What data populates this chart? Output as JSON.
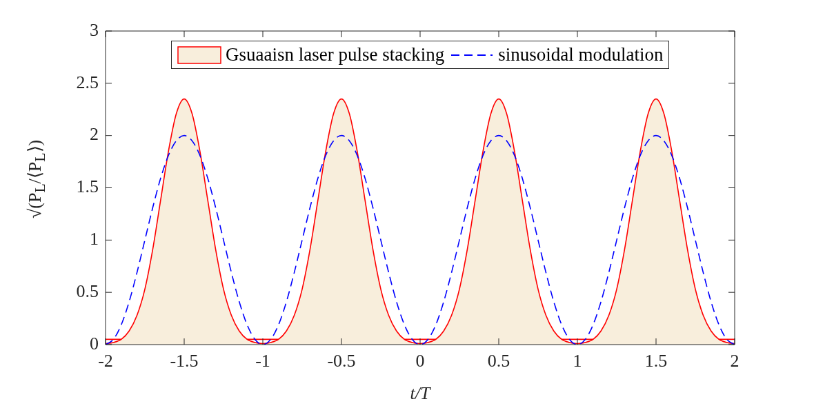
{
  "chart_data": {
    "type": "area",
    "xlabel": "t/T",
    "ylabel": "√(P$_{L}$/⟨P$_{L}$⟩)",
    "x": [
      -2,
      -1.95,
      -1.9,
      -1.85,
      -1.8,
      -1.75,
      -1.7,
      -1.65,
      -1.6,
      -1.55,
      -1.5,
      -1.45,
      -1.4,
      -1.35,
      -1.3,
      -1.25,
      -1.2,
      -1.15,
      -1.1,
      -1.05,
      -1,
      -0.95,
      -0.9,
      -0.85,
      -0.8,
      -0.75,
      -0.7,
      -0.65,
      -0.6,
      -0.55,
      -0.5,
      -0.45,
      -0.4,
      -0.35,
      -0.3,
      -0.25,
      -0.2,
      -0.15,
      -0.1,
      -0.05,
      0,
      0.05,
      0.1,
      0.15,
      0.2,
      0.25,
      0.3,
      0.35,
      0.4,
      0.45,
      0.5,
      0.55,
      0.6,
      0.65,
      0.7,
      0.75,
      0.8,
      0.85,
      0.9,
      0.95,
      1,
      1.05,
      1.1,
      1.15,
      1.2,
      1.25,
      1.3,
      1.35,
      1.4,
      1.45,
      1.5,
      1.55,
      1.6,
      1.65,
      1.7,
      1.75,
      1.8,
      1.85,
      1.9,
      1.95,
      2
    ],
    "series": [
      {
        "name": "Gsuaaisn laser pulse stacking",
        "color": "#ff0000",
        "values": [
          0.01,
          0.02,
          0.05,
          0.13,
          0.28,
          0.53,
          0.91,
          1.38,
          1.85,
          2.21,
          2.35,
          2.21,
          1.85,
          1.38,
          0.91,
          0.53,
          0.28,
          0.13,
          0.05,
          0.02,
          0.01,
          0.02,
          0.05,
          0.13,
          0.28,
          0.53,
          0.91,
          1.38,
          1.85,
          2.21,
          2.35,
          2.21,
          1.85,
          1.38,
          0.91,
          0.53,
          0.28,
          0.13,
          0.05,
          0.02,
          0.01,
          0.02,
          0.05,
          0.13,
          0.28,
          0.53,
          0.91,
          1.38,
          1.85,
          2.21,
          2.35,
          2.21,
          1.85,
          1.38,
          0.91,
          0.53,
          0.28,
          0.13,
          0.05,
          0.02,
          0.01,
          0.02,
          0.05,
          0.13,
          0.28,
          0.53,
          0.91,
          1.38,
          1.85,
          2.21,
          2.35,
          2.21,
          1.85,
          1.38,
          0.91,
          0.53,
          0.28,
          0.13,
          0.05,
          0.02,
          0.01
        ]
      },
      {
        "name": "sinusoidal modulation",
        "type": "line",
        "color": "#0000ff",
        "line_style": "dashed",
        "values": [
          0,
          0.05,
          0.19,
          0.41,
          0.69,
          1,
          1.31,
          1.59,
          1.81,
          1.95,
          2,
          1.95,
          1.81,
          1.59,
          1.31,
          1,
          0.69,
          0.41,
          0.19,
          0.05,
          0,
          0.05,
          0.19,
          0.41,
          0.69,
          1,
          1.31,
          1.59,
          1.81,
          1.95,
          2,
          1.95,
          1.81,
          1.59,
          1.31,
          1,
          0.69,
          0.41,
          0.19,
          0.05,
          0,
          0.05,
          0.19,
          0.41,
          0.69,
          1,
          1.31,
          1.59,
          1.81,
          1.95,
          2,
          1.95,
          1.81,
          1.59,
          1.31,
          1,
          0.69,
          0.41,
          0.19,
          0.05,
          0,
          0.05,
          0.19,
          0.41,
          0.69,
          1,
          1.31,
          1.59,
          1.81,
          1.95,
          2,
          1.95,
          1.81,
          1.59,
          1.31,
          1,
          0.69,
          0.41,
          0.19,
          0.05,
          0
        ]
      }
    ],
    "ref_lines": [
      {
        "axis": "y",
        "value": 0.05,
        "color": "#ff0000"
      }
    ],
    "xlim": [
      -2,
      2
    ],
    "xticks": [
      -2,
      -1.5,
      -1,
      -0.5,
      0,
      0.5,
      1,
      1.5,
      2
    ],
    "ylim": [
      0,
      3
    ],
    "yticks": [
      0,
      0.5,
      1,
      1.5,
      2,
      2.5,
      3
    ],
    "grid": false,
    "legend": "top"
  }
}
